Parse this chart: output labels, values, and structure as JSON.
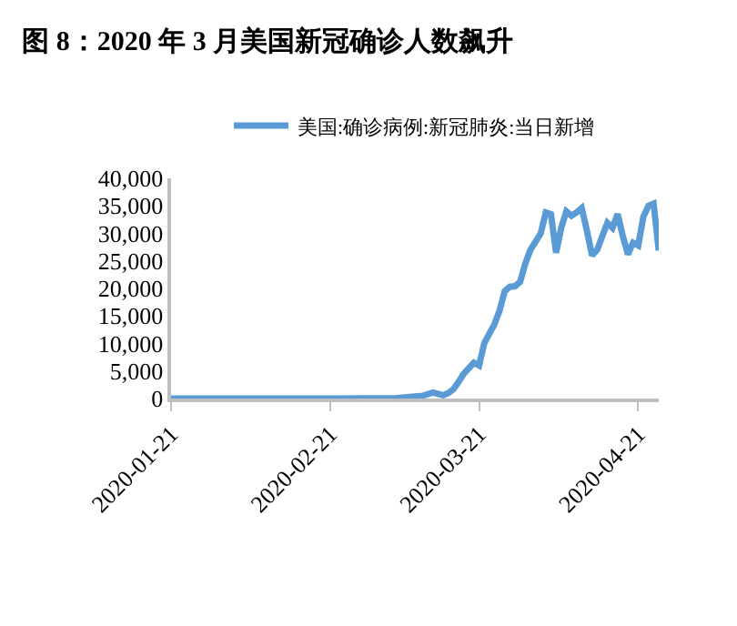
{
  "chart_data": {
    "type": "line",
    "title": "图 8：2020 年 3 月美国新冠确诊人数飙升",
    "x": [
      "2020-01-21",
      "2020-02-21",
      "2020-03-05",
      "2020-03-10",
      "2020-03-12",
      "2020-03-14",
      "2020-03-15",
      "2020-03-16",
      "2020-03-17",
      "2020-03-18",
      "2020-03-20",
      "2020-03-21",
      "2020-03-22",
      "2020-03-23",
      "2020-03-24",
      "2020-03-25",
      "2020-03-26",
      "2020-03-27",
      "2020-03-28",
      "2020-03-29",
      "2020-03-30",
      "2020-03-31",
      "2020-04-01",
      "2020-04-02",
      "2020-04-03",
      "2020-04-04",
      "2020-04-05",
      "2020-04-06",
      "2020-04-07",
      "2020-04-08",
      "2020-04-09",
      "2020-04-10",
      "2020-04-11",
      "2020-04-12",
      "2020-04-13",
      "2020-04-14",
      "2020-04-15",
      "2020-04-16",
      "2020-04-17",
      "2020-04-18",
      "2020-04-19",
      "2020-04-20",
      "2020-04-21",
      "2020-04-22",
      "2020-04-23",
      "2020-04-24",
      "2020-04-25"
    ],
    "series": [
      {
        "name": "美国:确诊病例:新冠肺炎:当日新增",
        "color": "#5b9bd5",
        "values": [
          0,
          0,
          100,
          500,
          1100,
          600,
          1000,
          1700,
          3000,
          4500,
          6500,
          6000,
          10000,
          11800,
          13500,
          16000,
          19500,
          20300,
          20400,
          21200,
          24500,
          27000,
          28500,
          30000,
          33800,
          33500,
          26500,
          31000,
          34000,
          33200,
          33800,
          34600,
          30500,
          26000,
          27000,
          29500,
          31900,
          31000,
          33500,
          29500,
          26200,
          28300,
          27800,
          33000,
          35000,
          35400,
          26900
        ]
      }
    ],
    "xlim": [
      "2020-01-21",
      "2020-04-25"
    ],
    "xticks": [
      "2020-01-21",
      "2020-02-21",
      "2020-03-21",
      "2020-04-21"
    ],
    "ylim": [
      0,
      40000
    ],
    "yticks": [
      {
        "value": 0,
        "label": "0"
      },
      {
        "value": 5000,
        "label": "5,000"
      },
      {
        "value": 10000,
        "label": "10,000"
      },
      {
        "value": 15000,
        "label": "15,000"
      },
      {
        "value": 20000,
        "label": "20,000"
      },
      {
        "value": 25000,
        "label": "25,000"
      },
      {
        "value": 30000,
        "label": "30,000"
      },
      {
        "value": 35000,
        "label": "35,000"
      },
      {
        "value": 40000,
        "label": "40,000"
      }
    ],
    "legend": "top",
    "marker": "none",
    "line_style": "solid"
  }
}
